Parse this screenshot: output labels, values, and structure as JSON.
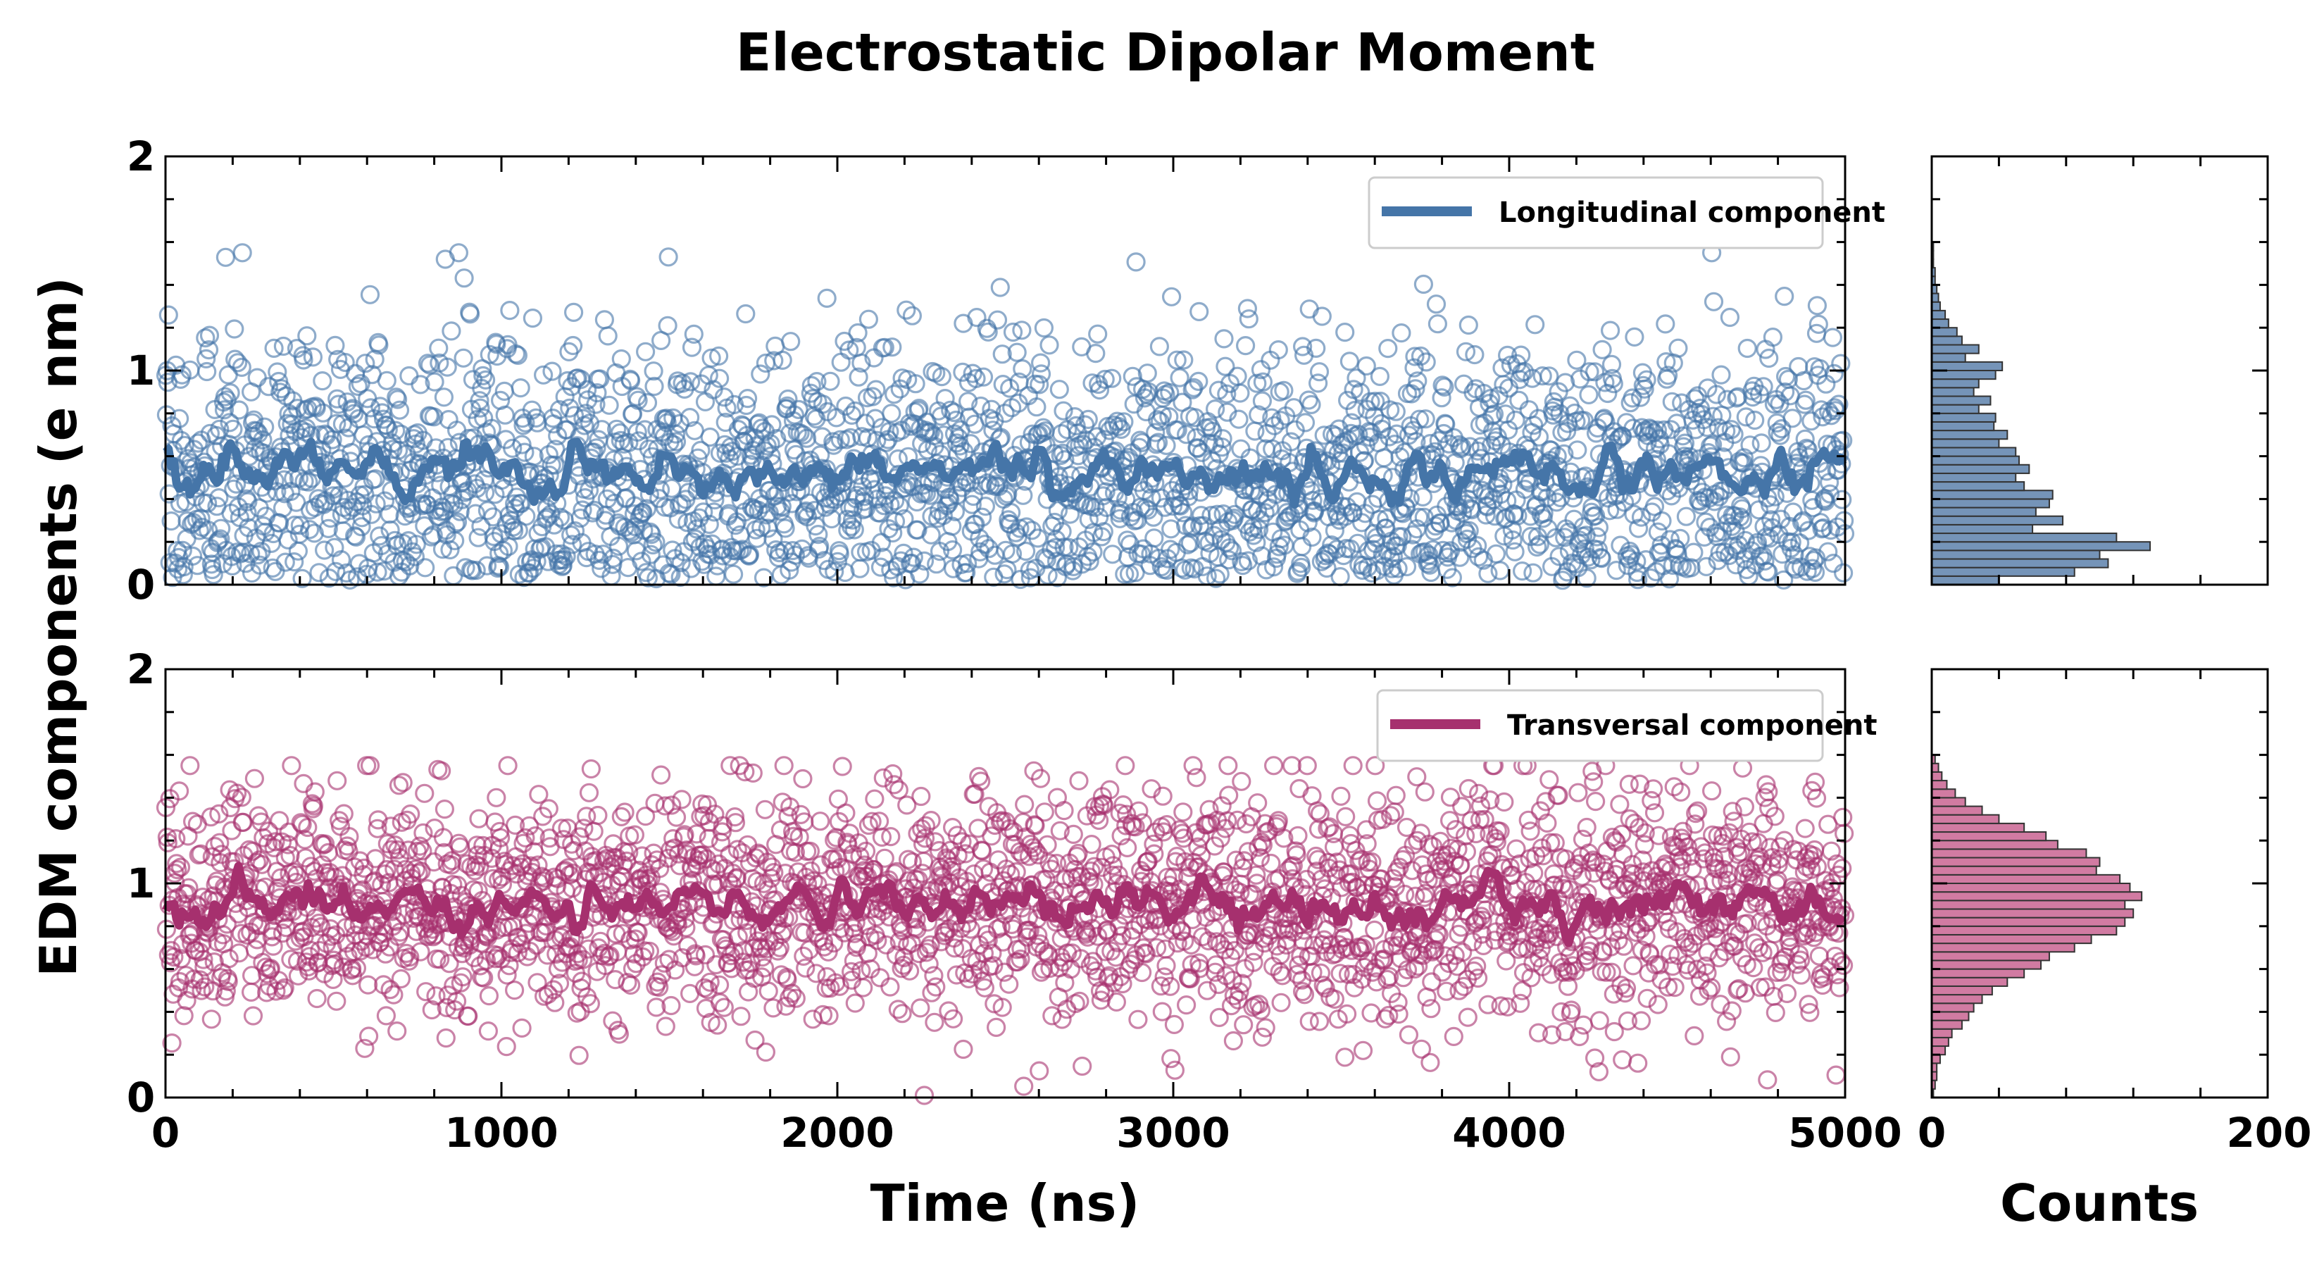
{
  "chart_data": [
    {
      "type": "scatter",
      "title": "Electrostatic Dipolar Moment",
      "xlabel": "Time (ns)",
      "ylabel": "EDM components (e nm)",
      "xlim": [
        0,
        5000
      ],
      "ylim": [
        0,
        2
      ],
      "x_ticks": [
        "0",
        "1000",
        "2000",
        "3000",
        "4000",
        "5000"
      ],
      "y_ticks": [
        "0",
        "1",
        "2"
      ],
      "legend_position": "top-right",
      "series": [
        {
          "name": "Longitudinal component",
          "color": "#4575a8",
          "marker": "open-circle",
          "n_points": 2500,
          "mean": 0.5,
          "std": 0.33,
          "smoothed_line": true
        }
      ]
    },
    {
      "type": "scatter",
      "xlabel": "Time (ns)",
      "ylabel": "EDM components (e nm)",
      "xlim": [
        0,
        5000
      ],
      "ylim": [
        0,
        2
      ],
      "x_ticks": [
        "0",
        "1000",
        "2000",
        "3000",
        "4000",
        "5000"
      ],
      "y_ticks": [
        "0",
        "1",
        "2"
      ],
      "legend_position": "top-right",
      "series": [
        {
          "name": "Transversal component",
          "color": "#a6306e",
          "marker": "open-circle",
          "n_points": 2500,
          "mean": 0.9,
          "std": 0.27,
          "smoothed_line": true
        }
      ]
    },
    {
      "type": "bar",
      "orientation": "horizontal",
      "xlabel": "Counts",
      "xlim": [
        0,
        200
      ],
      "ylim": [
        0,
        2
      ],
      "x_ticks": [
        "0",
        "200"
      ],
      "bin_width": 0.04,
      "bins_start": [
        0,
        0.04,
        0.08,
        0.12,
        0.16,
        0.2,
        0.24,
        0.28,
        0.32,
        0.36,
        0.4,
        0.44,
        0.48,
        0.52,
        0.56,
        0.6,
        0.64,
        0.68,
        0.72,
        0.76,
        0.8,
        0.84,
        0.88,
        0.92,
        0.96,
        1.0,
        1.04,
        1.08,
        1.12,
        1.16,
        1.2,
        1.24,
        1.28,
        1.32,
        1.36,
        1.4,
        1.44,
        1.48,
        1.52,
        1.56
      ],
      "counts": [
        40,
        85,
        105,
        100,
        130,
        110,
        60,
        78,
        62,
        70,
        72,
        55,
        50,
        58,
        52,
        50,
        40,
        45,
        37,
        38,
        28,
        35,
        25,
        28,
        38,
        42,
        20,
        28,
        18,
        15,
        10,
        8,
        5,
        4,
        3,
        2,
        2,
        1,
        1,
        1
      ],
      "color": "#7594b8"
    },
    {
      "type": "bar",
      "orientation": "horizontal",
      "xlabel": "Counts",
      "xlim": [
        0,
        200
      ],
      "ylim": [
        0,
        2
      ],
      "x_ticks": [
        "0",
        "200"
      ],
      "bin_width": 0.04,
      "bins_start": [
        0,
        0.04,
        0.08,
        0.12,
        0.16,
        0.2,
        0.24,
        0.28,
        0.32,
        0.36,
        0.4,
        0.44,
        0.48,
        0.52,
        0.56,
        0.6,
        0.64,
        0.68,
        0.72,
        0.76,
        0.8,
        0.84,
        0.88,
        0.92,
        0.96,
        1.0,
        1.04,
        1.08,
        1.12,
        1.16,
        1.2,
        1.24,
        1.28,
        1.32,
        1.36,
        1.4,
        1.44,
        1.48,
        1.52,
        1.56
      ],
      "counts": [
        1,
        2,
        3,
        3,
        5,
        8,
        10,
        12,
        18,
        22,
        25,
        30,
        36,
        45,
        55,
        65,
        70,
        85,
        95,
        110,
        115,
        120,
        115,
        125,
        118,
        112,
        98,
        100,
        92,
        75,
        68,
        55,
        40,
        30,
        20,
        14,
        9,
        6,
        4,
        2
      ],
      "color": "#d17ba2"
    }
  ]
}
